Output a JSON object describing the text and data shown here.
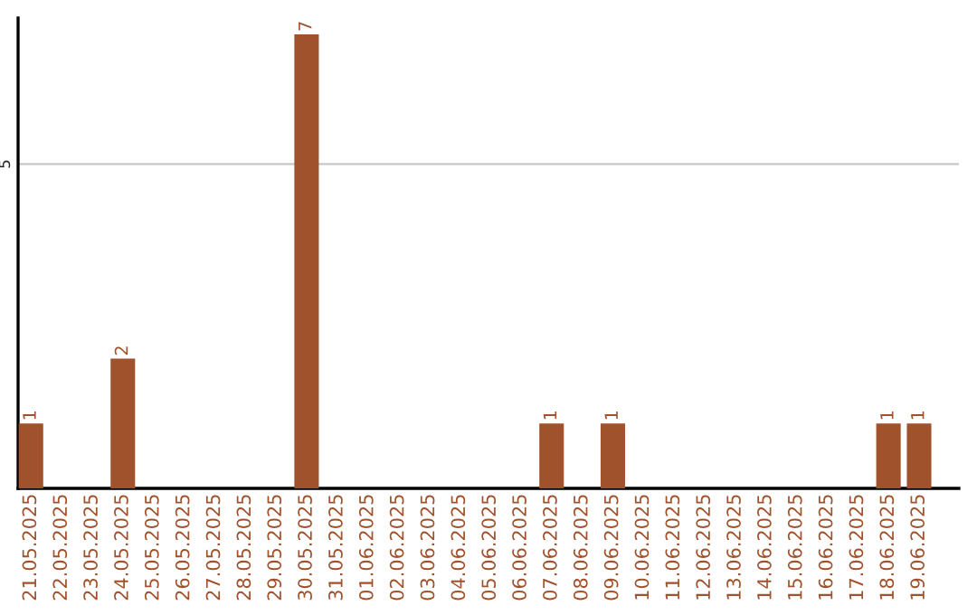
{
  "chart_data": {
    "type": "bar",
    "categories": [
      "21.05.2025",
      "22.05.2025",
      "23.05.2025",
      "24.05.2025",
      "25.05.2025",
      "26.05.2025",
      "27.05.2025",
      "28.05.2025",
      "29.05.2025",
      "30.05.2025",
      "31.05.2025",
      "01.06.2025",
      "02.06.2025",
      "03.06.2025",
      "04.06.2025",
      "05.06.2025",
      "06.06.2025",
      "07.06.2025",
      "08.06.2025",
      "09.06.2025",
      "10.06.2025",
      "11.06.2025",
      "12.06.2025",
      "13.06.2025",
      "14.06.2025",
      "15.06.2025",
      "16.06.2025",
      "17.06.2025",
      "18.06.2025",
      "19.06.2025"
    ],
    "values": [
      1,
      0,
      0,
      2,
      0,
      0,
      0,
      0,
      0,
      7,
      0,
      0,
      0,
      0,
      0,
      0,
      0,
      1,
      0,
      1,
      0,
      0,
      0,
      0,
      0,
      0,
      0,
      0,
      1,
      1
    ],
    "value_labels": [
      "1",
      null,
      null,
      "2",
      null,
      null,
      null,
      null,
      null,
      "7",
      null,
      null,
      null,
      null,
      null,
      null,
      null,
      "1",
      null,
      "1",
      null,
      null,
      null,
      null,
      null,
      null,
      null,
      null,
      "1",
      "1"
    ],
    "color": "#a0522d",
    "ylim": [
      0,
      7.25
    ],
    "yticks": [
      5
    ],
    "grid": "y",
    "legend": false
  }
}
